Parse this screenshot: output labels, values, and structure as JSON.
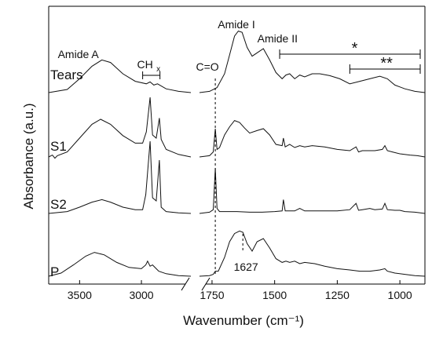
{
  "chart_data": {
    "type": "line",
    "xlabel": "Wavenumber (cm⁻¹)",
    "ylabel": "Absorbance (a.u.)",
    "x_axis_break": [
      2600,
      1800
    ],
    "xlim_left": [
      3750,
      2600
    ],
    "xlim_right": [
      1800,
      900
    ],
    "x_reversed": true,
    "x_ticks": [
      {
        "value": 3500,
        "label": "3500"
      },
      {
        "value": 3000,
        "label": "3000"
      },
      {
        "value": 1750,
        "label": "1750"
      },
      {
        "value": 1500,
        "label": "1500"
      },
      {
        "value": 1250,
        "label": "1250"
      },
      {
        "value": 1000,
        "label": "1000"
      }
    ],
    "series": [
      {
        "name": "Tears",
        "left": [
          [
            3750,
            0.0
          ],
          [
            3600,
            0.05
          ],
          [
            3500,
            0.22
          ],
          [
            3400,
            0.42
          ],
          [
            3320,
            0.52
          ],
          [
            3250,
            0.48
          ],
          [
            3150,
            0.3
          ],
          [
            3050,
            0.18
          ],
          [
            2960,
            0.14
          ],
          [
            2930,
            0.17
          ],
          [
            2900,
            0.12
          ],
          [
            2870,
            0.14
          ],
          [
            2800,
            0.06
          ],
          [
            2700,
            0.02
          ],
          [
            2600,
            0.0
          ]
        ],
        "right": [
          [
            1800,
            0.0
          ],
          [
            1760,
            0.02
          ],
          [
            1730,
            0.08
          ],
          [
            1700,
            0.3
          ],
          [
            1680,
            0.6
          ],
          [
            1660,
            0.9
          ],
          [
            1645,
            0.98
          ],
          [
            1630,
            0.96
          ],
          [
            1610,
            0.72
          ],
          [
            1590,
            0.58
          ],
          [
            1560,
            0.66
          ],
          [
            1545,
            0.7
          ],
          [
            1520,
            0.52
          ],
          [
            1495,
            0.32
          ],
          [
            1470,
            0.22
          ],
          [
            1455,
            0.28
          ],
          [
            1440,
            0.3
          ],
          [
            1420,
            0.22
          ],
          [
            1400,
            0.28
          ],
          [
            1380,
            0.25
          ],
          [
            1350,
            0.3
          ],
          [
            1320,
            0.3
          ],
          [
            1280,
            0.27
          ],
          [
            1240,
            0.22
          ],
          [
            1200,
            0.14
          ],
          [
            1160,
            0.18
          ],
          [
            1120,
            0.22
          ],
          [
            1080,
            0.26
          ],
          [
            1050,
            0.22
          ],
          [
            1020,
            0.12
          ],
          [
            980,
            0.06
          ],
          [
            940,
            0.02
          ],
          [
            900,
            0.0
          ]
        ]
      },
      {
        "name": "S1",
        "left": [
          [
            3750,
            0.0
          ],
          [
            3720,
            0.03
          ],
          [
            3700,
            -0.02
          ],
          [
            3680,
            0.02
          ],
          [
            3600,
            0.08
          ],
          [
            3500,
            0.3
          ],
          [
            3400,
            0.52
          ],
          [
            3330,
            0.6
          ],
          [
            3250,
            0.52
          ],
          [
            3150,
            0.34
          ],
          [
            3050,
            0.22
          ],
          [
            2990,
            0.22
          ],
          [
            2960,
            0.4
          ],
          [
            2930,
            0.95
          ],
          [
            2910,
            0.35
          ],
          [
            2880,
            0.3
          ],
          [
            2855,
            0.62
          ],
          [
            2840,
            0.28
          ],
          [
            2800,
            0.12
          ],
          [
            2700,
            0.04
          ],
          [
            2600,
            0.0
          ]
        ],
        "right": [
          [
            1800,
            0.0
          ],
          [
            1760,
            0.02
          ],
          [
            1745,
            0.08
          ],
          [
            1737,
            0.45
          ],
          [
            1730,
            0.12
          ],
          [
            1720,
            0.15
          ],
          [
            1700,
            0.35
          ],
          [
            1680,
            0.48
          ],
          [
            1660,
            0.58
          ],
          [
            1640,
            0.55
          ],
          [
            1620,
            0.46
          ],
          [
            1600,
            0.38
          ],
          [
            1570,
            0.42
          ],
          [
            1545,
            0.45
          ],
          [
            1520,
            0.35
          ],
          [
            1495,
            0.2
          ],
          [
            1470,
            0.18
          ],
          [
            1465,
            0.3
          ],
          [
            1458,
            0.16
          ],
          [
            1440,
            0.2
          ],
          [
            1420,
            0.15
          ],
          [
            1400,
            0.18
          ],
          [
            1380,
            0.16
          ],
          [
            1350,
            0.18
          ],
          [
            1300,
            0.16
          ],
          [
            1250,
            0.12
          ],
          [
            1200,
            0.1
          ],
          [
            1175,
            0.16
          ],
          [
            1165,
            0.08
          ],
          [
            1150,
            0.1
          ],
          [
            1100,
            0.1
          ],
          [
            1070,
            0.12
          ],
          [
            1060,
            0.18
          ],
          [
            1050,
            0.1
          ],
          [
            1030,
            0.08
          ],
          [
            1000,
            0.05
          ],
          [
            960,
            0.03
          ],
          [
            930,
            0.02
          ],
          [
            900,
            0.0
          ]
        ]
      },
      {
        "name": "S2",
        "left": [
          [
            3750,
            0.0
          ],
          [
            3600,
            0.03
          ],
          [
            3500,
            0.1
          ],
          [
            3400,
            0.18
          ],
          [
            3320,
            0.22
          ],
          [
            3250,
            0.18
          ],
          [
            3150,
            0.1
          ],
          [
            3050,
            0.06
          ],
          [
            2990,
            0.06
          ],
          [
            2965,
            0.3
          ],
          [
            2930,
            1.15
          ],
          [
            2910,
            0.25
          ],
          [
            2880,
            0.2
          ],
          [
            2855,
            0.85
          ],
          [
            2840,
            0.1
          ],
          [
            2800,
            0.03
          ],
          [
            2700,
            0.01
          ],
          [
            2600,
            0.0
          ]
        ],
        "right": [
          [
            1800,
            0.0
          ],
          [
            1760,
            0.02
          ],
          [
            1745,
            0.06
          ],
          [
            1737,
            0.72
          ],
          [
            1730,
            0.08
          ],
          [
            1720,
            0.03
          ],
          [
            1700,
            0.03
          ],
          [
            1650,
            0.03
          ],
          [
            1600,
            0.02
          ],
          [
            1550,
            0.02
          ],
          [
            1500,
            0.03
          ],
          [
            1470,
            0.04
          ],
          [
            1465,
            0.22
          ],
          [
            1458,
            0.04
          ],
          [
            1420,
            0.04
          ],
          [
            1400,
            0.08
          ],
          [
            1380,
            0.04
          ],
          [
            1350,
            0.04
          ],
          [
            1300,
            0.04
          ],
          [
            1250,
            0.04
          ],
          [
            1200,
            0.06
          ],
          [
            1175,
            0.16
          ],
          [
            1165,
            0.05
          ],
          [
            1150,
            0.06
          ],
          [
            1120,
            0.08
          ],
          [
            1100,
            0.06
          ],
          [
            1070,
            0.07
          ],
          [
            1060,
            0.16
          ],
          [
            1050,
            0.06
          ],
          [
            1020,
            0.05
          ],
          [
            1000,
            0.05
          ],
          [
            980,
            0.03
          ],
          [
            940,
            0.02
          ],
          [
            900,
            0.0
          ]
        ]
      },
      {
        "name": "P",
        "left": [
          [
            3750,
            0.0
          ],
          [
            3650,
            0.05
          ],
          [
            3550,
            0.18
          ],
          [
            3450,
            0.32
          ],
          [
            3380,
            0.38
          ],
          [
            3300,
            0.34
          ],
          [
            3200,
            0.22
          ],
          [
            3100,
            0.14
          ],
          [
            3000,
            0.12
          ],
          [
            2965,
            0.18
          ],
          [
            2950,
            0.24
          ],
          [
            2930,
            0.16
          ],
          [
            2910,
            0.18
          ],
          [
            2880,
            0.12
          ],
          [
            2860,
            0.08
          ],
          [
            2800,
            0.04
          ],
          [
            2700,
            0.01
          ],
          [
            2600,
            0.0
          ]
        ],
        "right": [
          [
            1800,
            0.0
          ],
          [
            1760,
            0.01
          ],
          [
            1745,
            0.03
          ],
          [
            1737,
            0.08
          ],
          [
            1725,
            0.08
          ],
          [
            1700,
            0.3
          ],
          [
            1680,
            0.55
          ],
          [
            1660,
            0.68
          ],
          [
            1640,
            0.72
          ],
          [
            1627,
            0.7
          ],
          [
            1610,
            0.52
          ],
          [
            1590,
            0.4
          ],
          [
            1570,
            0.55
          ],
          [
            1545,
            0.6
          ],
          [
            1520,
            0.45
          ],
          [
            1495,
            0.28
          ],
          [
            1470,
            0.22
          ],
          [
            1455,
            0.24
          ],
          [
            1440,
            0.22
          ],
          [
            1420,
            0.24
          ],
          [
            1400,
            0.2
          ],
          [
            1380,
            0.22
          ],
          [
            1340,
            0.2
          ],
          [
            1300,
            0.16
          ],
          [
            1250,
            0.12
          ],
          [
            1200,
            0.1
          ],
          [
            1160,
            0.08
          ],
          [
            1120,
            0.08
          ],
          [
            1080,
            0.1
          ],
          [
            1060,
            0.12
          ],
          [
            1050,
            0.08
          ],
          [
            1020,
            0.05
          ],
          [
            980,
            0.03
          ],
          [
            940,
            0.01
          ],
          [
            900,
            0.0
          ]
        ]
      }
    ],
    "annotations": [
      {
        "text": "Amide A",
        "x": 3320
      },
      {
        "text": "CH",
        "sub": "x",
        "x_range": [
          2990,
          2850
        ]
      },
      {
        "text": "C=O",
        "x": 1737
      },
      {
        "text": "Amide I",
        "x": 1640
      },
      {
        "text": "Amide II",
        "x": 1545
      },
      {
        "text": "1627",
        "x": 1627
      },
      {
        "text": "*",
        "x_range": [
          1480,
          900
        ]
      },
      {
        "text": "**",
        "x_range": [
          1200,
          900
        ]
      }
    ]
  }
}
